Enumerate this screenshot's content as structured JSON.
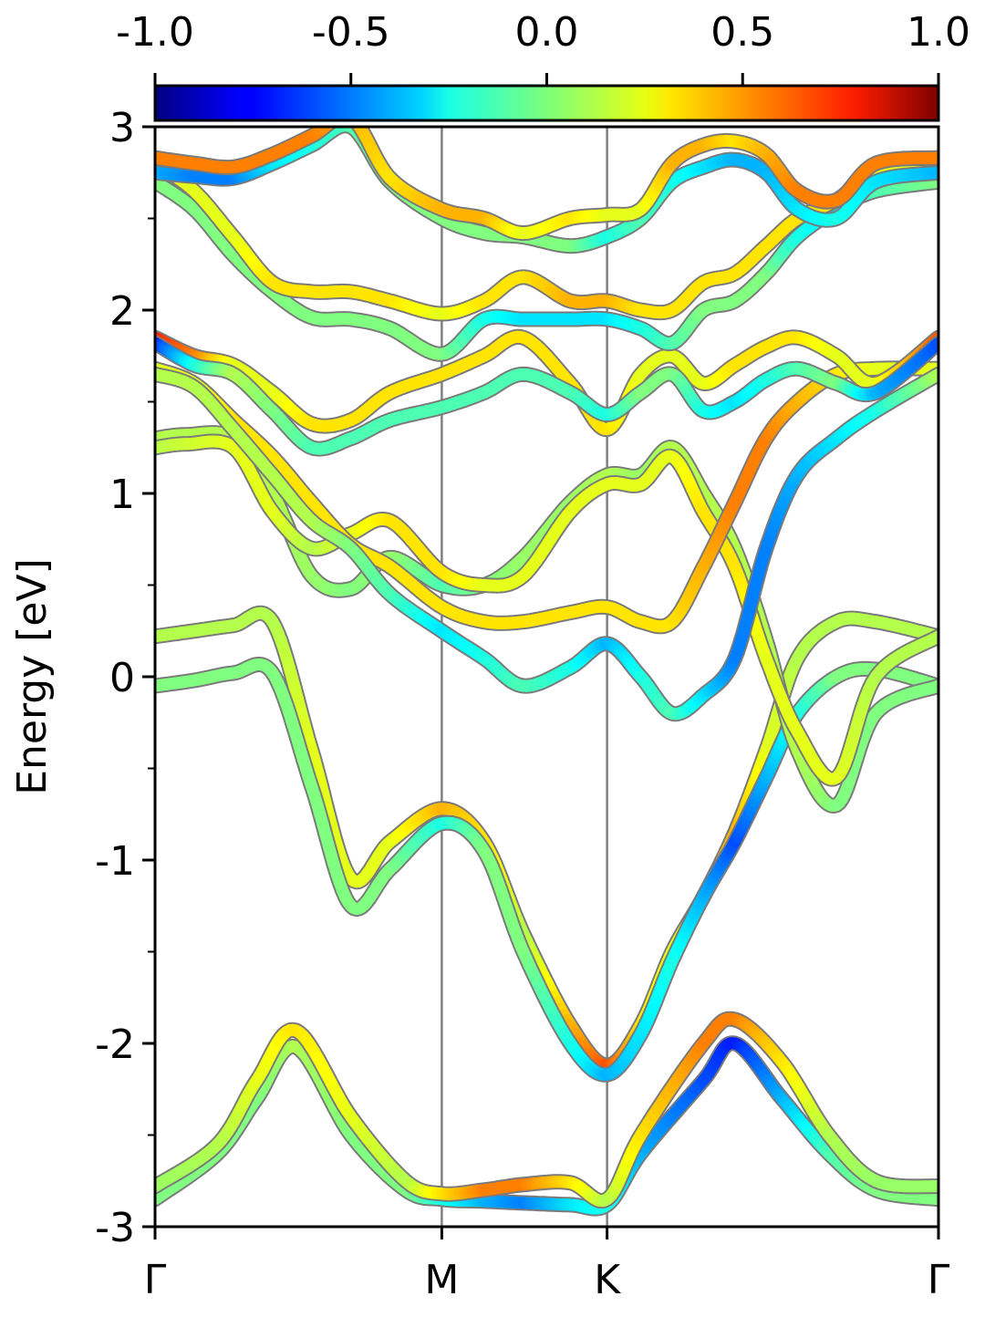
{
  "chart_data": {
    "type": "line",
    "title": "",
    "xlabel": "",
    "ylabel": "Energy [eV]",
    "ylim": [
      -3,
      3
    ],
    "y_ticks": [
      "3",
      "2",
      "1",
      "0",
      "-1",
      "-2",
      "-3"
    ],
    "y_tick_values": [
      3,
      2,
      1,
      0,
      -1,
      -2,
      -3
    ],
    "x_ticks": [
      {
        "label": "Γ",
        "x": 0.0
      },
      {
        "label": "M",
        "x": 0.366
      },
      {
        "label": "K",
        "x": 0.577
      },
      {
        "label": "Γ",
        "x": 1.0
      }
    ],
    "high_symmetry_lines": [
      0.366,
      0.577
    ],
    "colorbar": {
      "colormap": "jet",
      "range": [
        -1.0,
        1.0
      ],
      "tick_labels": [
        "-1.0",
        "-0.5",
        "0.0",
        "0.5",
        "1.0"
      ],
      "tick_values": [
        -1.0,
        -0.5,
        0.0,
        0.5,
        1.0
      ]
    },
    "series": [
      {
        "x": [
          0,
          0.08,
          0.13,
          0.18,
          0.25,
          0.32,
          0.366,
          0.42,
          0.47,
          0.53,
          0.577,
          0.62,
          0.7,
          0.74,
          0.8,
          0.86,
          0.92,
          1
        ],
        "y": [
          -2.85,
          -2.6,
          -2.3,
          -2.02,
          -2.5,
          -2.8,
          -2.85,
          -2.86,
          -2.87,
          -2.88,
          -2.88,
          -2.6,
          -2.2,
          -2.0,
          -2.3,
          -2.6,
          -2.8,
          -2.85
        ],
        "c": [
          0.0,
          0.0,
          0.0,
          0.1,
          0.0,
          0.0,
          -0.2,
          -0.4,
          -0.5,
          -0.3,
          -0.2,
          -0.4,
          -0.6,
          -0.7,
          -0.4,
          -0.1,
          0.0,
          0.0
        ]
      },
      {
        "x": [
          0,
          0.08,
          0.13,
          0.18,
          0.25,
          0.32,
          0.366,
          0.42,
          0.47,
          0.53,
          0.577,
          0.62,
          0.7,
          0.74,
          0.8,
          0.86,
          0.92,
          1
        ],
        "y": [
          -2.78,
          -2.55,
          -2.2,
          -1.93,
          -2.4,
          -2.75,
          -2.82,
          -2.8,
          -2.77,
          -2.76,
          -2.85,
          -2.5,
          -2.0,
          -1.87,
          -2.1,
          -2.5,
          -2.75,
          -2.78
        ],
        "c": [
          0.05,
          0.1,
          0.2,
          0.3,
          0.2,
          0.1,
          0.3,
          0.5,
          0.5,
          0.3,
          0.1,
          0.3,
          0.5,
          0.5,
          0.3,
          0.1,
          0.05,
          0.05
        ]
      },
      {
        "x": [
          0,
          0.05,
          0.1,
          0.15,
          0.2,
          0.25,
          0.3,
          0.366,
          0.42,
          0.47,
          0.53,
          0.577,
          0.62,
          0.66,
          0.7,
          0.74,
          0.78,
          0.82,
          0.87,
          0.92,
          1
        ],
        "y": [
          0.22,
          0.25,
          0.28,
          0.3,
          -0.4,
          -1.1,
          -0.9,
          -0.72,
          -0.9,
          -1.4,
          -1.9,
          -2.12,
          -1.9,
          -1.5,
          -1.2,
          -0.85,
          -0.4,
          0.1,
          0.3,
          0.3,
          0.22
        ],
        "c": [
          0.1,
          0.1,
          0.1,
          0.1,
          0.2,
          0.2,
          0.2,
          0.4,
          0.3,
          0.1,
          0.4,
          0.6,
          0.3,
          0.2,
          0.3,
          0.4,
          0.2,
          0.1,
          0.1,
          0.1,
          0.1
        ]
      },
      {
        "x": [
          0,
          0.05,
          0.1,
          0.15,
          0.2,
          0.25,
          0.3,
          0.366,
          0.42,
          0.47,
          0.53,
          0.577,
          0.62,
          0.66,
          0.7,
          0.74,
          0.78,
          0.82,
          0.87,
          0.92,
          1
        ],
        "y": [
          -0.05,
          -0.02,
          0.02,
          0.02,
          -0.6,
          -1.25,
          -1.05,
          -0.8,
          -0.95,
          -1.5,
          -2.0,
          -2.17,
          -1.95,
          -1.55,
          -1.2,
          -0.9,
          -0.55,
          -0.2,
          0.0,
          0.04,
          -0.05
        ],
        "c": [
          0.0,
          0.0,
          0.0,
          0.0,
          0.0,
          0.0,
          0.0,
          -0.2,
          0.0,
          0.0,
          -0.2,
          -0.4,
          -0.3,
          -0.2,
          -0.4,
          -0.6,
          -0.4,
          -0.2,
          0.0,
          0.0,
          0.0
        ]
      },
      {
        "x": [
          0,
          0.04,
          0.1,
          0.15,
          0.2,
          0.25,
          0.3,
          0.366,
          0.42,
          0.47,
          0.53,
          0.577,
          0.62,
          0.66,
          0.7,
          0.74,
          0.78,
          0.82,
          0.87,
          0.92,
          1
        ],
        "y": [
          1.3,
          1.32,
          1.3,
          1.0,
          0.55,
          0.48,
          0.65,
          0.5,
          0.5,
          0.65,
          0.95,
          1.1,
          1.1,
          1.25,
          1.0,
          0.7,
          0.2,
          -0.4,
          -0.7,
          -0.2,
          -0.05
        ],
        "c": [
          0.1,
          0.1,
          0.1,
          0.1,
          0.05,
          0.0,
          0.05,
          -0.1,
          0.0,
          0.05,
          0.05,
          0.1,
          0.05,
          0.1,
          0.1,
          0.1,
          0.1,
          0.1,
          0.0,
          0.0,
          0.0
        ]
      },
      {
        "x": [
          0,
          0.04,
          0.1,
          0.15,
          0.2,
          0.25,
          0.3,
          0.366,
          0.42,
          0.47,
          0.53,
          0.577,
          0.62,
          0.66,
          0.7,
          0.74,
          0.78,
          0.82,
          0.87,
          0.92,
          1
        ],
        "y": [
          1.25,
          1.27,
          1.25,
          0.9,
          0.7,
          0.78,
          0.85,
          0.57,
          0.5,
          0.55,
          0.9,
          1.05,
          1.05,
          1.2,
          0.9,
          0.6,
          0.1,
          -0.3,
          -0.55,
          0.0,
          0.22
        ],
        "c": [
          0.1,
          0.15,
          0.2,
          0.2,
          0.1,
          0.2,
          0.3,
          0.3,
          0.2,
          0.2,
          0.2,
          0.2,
          0.2,
          0.2,
          0.3,
          0.3,
          0.2,
          0.2,
          0.2,
          0.1,
          0.1
        ]
      },
      {
        "x": [
          0,
          0.05,
          0.1,
          0.15,
          0.2,
          0.25,
          0.3,
          0.366,
          0.42,
          0.47,
          0.53,
          0.577,
          0.62,
          0.66,
          0.7,
          0.74,
          0.78,
          0.82,
          0.87,
          0.92,
          1
        ],
        "y": [
          1.68,
          1.6,
          1.4,
          1.2,
          0.95,
          0.72,
          0.6,
          0.38,
          0.3,
          0.3,
          0.35,
          0.38,
          0.3,
          0.3,
          0.6,
          0.95,
          1.3,
          1.5,
          1.65,
          1.68,
          1.68
        ],
        "c": [
          0.2,
          0.2,
          0.3,
          0.3,
          0.3,
          0.3,
          0.3,
          0.3,
          0.3,
          0.3,
          0.3,
          0.3,
          0.3,
          0.3,
          0.4,
          0.5,
          0.5,
          0.4,
          0.3,
          0.2,
          0.2
        ]
      },
      {
        "x": [
          0,
          0.05,
          0.1,
          0.15,
          0.2,
          0.25,
          0.3,
          0.366,
          0.42,
          0.47,
          0.53,
          0.577,
          0.62,
          0.66,
          0.7,
          0.74,
          0.78,
          0.82,
          0.87,
          0.92,
          1
        ],
        "y": [
          1.65,
          1.58,
          1.35,
          1.1,
          0.85,
          0.7,
          0.45,
          0.25,
          0.1,
          -0.05,
          0.05,
          0.18,
          0.0,
          -0.2,
          -0.1,
          0.1,
          0.7,
          1.1,
          1.3,
          1.45,
          1.65
        ],
        "c": [
          0.1,
          0.1,
          0.1,
          0.1,
          0.1,
          0.0,
          -0.1,
          -0.3,
          -0.2,
          -0.1,
          -0.2,
          -0.4,
          -0.2,
          -0.1,
          -0.3,
          -0.5,
          -0.5,
          -0.4,
          -0.3,
          -0.2,
          0.1
        ]
      },
      {
        "x": [
          0,
          0.05,
          0.1,
          0.15,
          0.2,
          0.25,
          0.3,
          0.366,
          0.42,
          0.47,
          0.53,
          0.577,
          0.62,
          0.66,
          0.7,
          0.74,
          0.78,
          0.82,
          0.87,
          0.92,
          1
        ],
        "y": [
          1.85,
          1.75,
          1.7,
          1.55,
          1.38,
          1.4,
          1.55,
          1.65,
          1.75,
          1.85,
          1.6,
          1.35,
          1.65,
          1.75,
          1.6,
          1.7,
          1.8,
          1.85,
          1.75,
          1.6,
          1.85
        ],
        "c": [
          0.7,
          0.5,
          0.2,
          0.2,
          0.3,
          0.3,
          0.3,
          0.3,
          0.3,
          0.3,
          0.3,
          0.3,
          0.2,
          0.2,
          0.2,
          0.3,
          0.3,
          0.3,
          0.2,
          0.2,
          0.6
        ]
      },
      {
        "x": [
          0,
          0.05,
          0.1,
          0.15,
          0.2,
          0.25,
          0.3,
          0.366,
          0.42,
          0.47,
          0.53,
          0.577,
          0.62,
          0.66,
          0.7,
          0.74,
          0.78,
          0.82,
          0.87,
          0.92,
          1
        ],
        "y": [
          1.82,
          1.7,
          1.65,
          1.45,
          1.25,
          1.3,
          1.4,
          1.47,
          1.55,
          1.65,
          1.55,
          1.43,
          1.55,
          1.65,
          1.45,
          1.5,
          1.62,
          1.68,
          1.6,
          1.55,
          1.82
        ],
        "c": [
          -0.7,
          -0.2,
          0.1,
          0.0,
          -0.1,
          -0.1,
          -0.1,
          -0.1,
          -0.1,
          -0.1,
          -0.1,
          -0.2,
          0.0,
          0.0,
          -0.2,
          -0.3,
          -0.2,
          -0.1,
          0.0,
          -0.4,
          -0.6
        ]
      },
      {
        "x": [
          0,
          0.05,
          0.1,
          0.15,
          0.2,
          0.25,
          0.3,
          0.366,
          0.42,
          0.47,
          0.53,
          0.577,
          0.62,
          0.66,
          0.7,
          0.74,
          0.78,
          0.82,
          0.87,
          0.92,
          1
        ],
        "y": [
          2.7,
          2.55,
          2.3,
          2.1,
          1.96,
          1.95,
          1.9,
          1.76,
          1.95,
          1.95,
          1.95,
          1.95,
          1.9,
          1.82,
          2.0,
          2.05,
          2.2,
          2.4,
          2.55,
          2.65,
          2.7
        ],
        "c": [
          0.0,
          0.0,
          0.0,
          0.0,
          0.0,
          0.0,
          0.0,
          0.0,
          -0.2,
          -0.3,
          -0.3,
          -0.3,
          -0.2,
          -0.1,
          0.0,
          0.0,
          0.0,
          -0.2,
          -0.3,
          -0.1,
          0.0
        ]
      },
      {
        "x": [
          0,
          0.05,
          0.1,
          0.15,
          0.2,
          0.25,
          0.3,
          0.366,
          0.42,
          0.47,
          0.53,
          0.577,
          0.62,
          0.66,
          0.7,
          0.74,
          0.78,
          0.82,
          0.87,
          0.92,
          1
        ],
        "y": [
          2.8,
          2.65,
          2.4,
          2.15,
          2.1,
          2.1,
          2.05,
          1.98,
          2.05,
          2.18,
          2.05,
          2.05,
          2.0,
          2.0,
          2.15,
          2.2,
          2.35,
          2.5,
          2.6,
          2.75,
          2.8
        ],
        "c": [
          0.2,
          0.2,
          0.2,
          0.3,
          0.3,
          0.3,
          0.3,
          0.2,
          0.3,
          0.3,
          0.4,
          0.4,
          0.3,
          0.3,
          0.3,
          0.3,
          0.3,
          0.3,
          0.3,
          0.2,
          0.2
        ]
      },
      {
        "x": [
          0,
          0.05,
          0.1,
          0.15,
          0.2,
          0.25,
          0.3,
          0.366,
          0.42,
          0.47,
          0.53,
          0.577,
          0.62,
          0.66,
          0.7,
          0.74,
          0.78,
          0.82,
          0.87,
          0.92,
          1
        ],
        "y": [
          2.75,
          2.73,
          2.72,
          2.8,
          2.9,
          3.0,
          2.7,
          2.5,
          2.42,
          2.4,
          2.35,
          2.4,
          2.5,
          2.7,
          2.78,
          2.82,
          2.75,
          2.55,
          2.5,
          2.7,
          2.75
        ],
        "c": [
          -0.4,
          -0.5,
          -0.5,
          -0.3,
          -0.2,
          -0.1,
          0.0,
          0.0,
          0.0,
          0.0,
          0.0,
          -0.2,
          -0.1,
          -0.2,
          -0.3,
          -0.4,
          -0.4,
          -0.3,
          -0.2,
          -0.3,
          -0.4
        ]
      },
      {
        "x": [
          0,
          0.05,
          0.1,
          0.15,
          0.2,
          0.25,
          0.3,
          0.366,
          0.42,
          0.47,
          0.53,
          0.577,
          0.62,
          0.66,
          0.7,
          0.74,
          0.78,
          0.82,
          0.87,
          0.92,
          1
        ],
        "y": [
          2.83,
          2.8,
          2.78,
          2.85,
          2.95,
          3.05,
          2.72,
          2.55,
          2.5,
          2.42,
          2.5,
          2.52,
          2.55,
          2.8,
          2.9,
          2.92,
          2.85,
          2.65,
          2.6,
          2.8,
          2.83
        ],
        "c": [
          0.5,
          0.5,
          0.5,
          0.5,
          0.5,
          0.4,
          0.3,
          0.4,
          0.4,
          0.2,
          0.3,
          0.2,
          0.2,
          0.4,
          0.4,
          0.3,
          0.4,
          0.5,
          0.5,
          0.5,
          0.5
        ]
      }
    ]
  }
}
